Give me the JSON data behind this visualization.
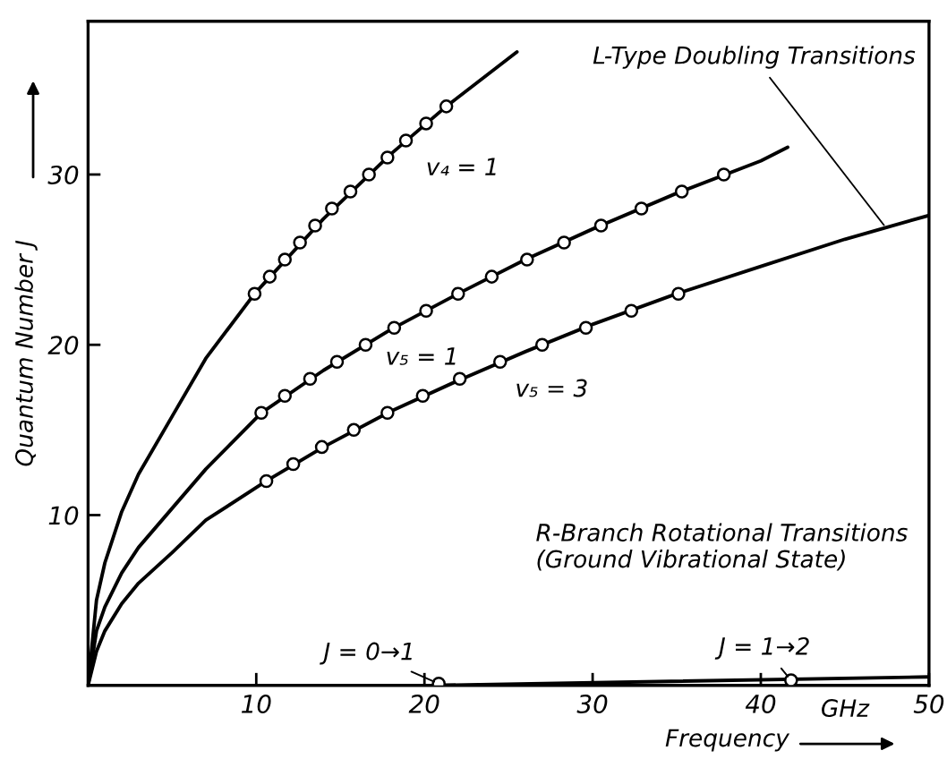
{
  "chart_data": {
    "type": "line",
    "xlabel": "Frequency",
    "ylabel": "Quantum Number J",
    "xlim": [
      0,
      50
    ],
    "ylim": [
      0,
      39
    ],
    "xticks": [
      10,
      20,
      30,
      40,
      50
    ],
    "yticks": [
      10,
      20,
      30
    ],
    "grid": false,
    "legend": false,
    "series": [
      {
        "color": "#000000",
        "x": [
          0,
          0.5,
          1,
          2,
          3,
          5,
          7,
          9.9,
          14,
          18,
          21.3,
          25.5
        ],
        "values": [
          0,
          5,
          7.2,
          10.2,
          12.4,
          15.8,
          19.2,
          23,
          27.4,
          31.2,
          34,
          37.2
        ]
      },
      {
        "color": "#000000",
        "x": [
          0,
          0.5,
          1,
          2,
          3,
          5,
          7,
          10.3,
          14,
          18,
          22,
          26,
          30,
          35,
          40,
          41.6
        ],
        "values": [
          0,
          3.2,
          4.6,
          6.6,
          8.1,
          10.4,
          12.7,
          16,
          18.5,
          20.9,
          23,
          25,
          26.8,
          28.9,
          30.8,
          31.6
        ]
      },
      {
        "color": "#000000",
        "x": [
          0,
          0.5,
          1,
          2,
          3,
          5,
          7,
          10.6,
          14,
          18,
          22,
          26,
          30,
          35,
          40,
          45,
          50
        ],
        "values": [
          0,
          2,
          3.2,
          4.8,
          6,
          7.8,
          9.7,
          12,
          14,
          16.1,
          17.9,
          19.6,
          21.2,
          23,
          24.6,
          26.2,
          27.6
        ]
      },
      {
        "color": "#000000",
        "x": [
          20.5,
          50
        ],
        "values": [
          0,
          0.5
        ]
      },
      {
        "type": "scatter",
        "color": "#000000",
        "marker": "circle",
        "x": [
          9.9,
          10.8,
          11.7,
          12.6,
          13.5,
          14.5,
          15.6,
          16.7,
          17.8,
          18.9,
          20.1,
          21.3
        ],
        "values": [
          23,
          24,
          25,
          26,
          27,
          28,
          29,
          30,
          31,
          32,
          33,
          34
        ]
      },
      {
        "type": "scatter",
        "color": "#000000",
        "marker": "circle",
        "x": [
          10.3,
          11.7,
          13.2,
          14.8,
          16.5,
          18.2,
          20.1,
          22,
          24,
          26.1,
          28.3,
          30.5,
          32.9,
          35.3,
          37.8
        ],
        "values": [
          16,
          17,
          18,
          19,
          20,
          21,
          22,
          23,
          24,
          25,
          26,
          27,
          28,
          29,
          30
        ]
      },
      {
        "type": "scatter",
        "color": "#000000",
        "marker": "circle",
        "x": [
          10.6,
          12.2,
          13.9,
          15.8,
          17.8,
          19.9,
          22.1,
          24.5,
          27,
          29.6,
          32.3,
          35.1
        ],
        "values": [
          12,
          13,
          14,
          15,
          16,
          17,
          18,
          19,
          20,
          21,
          22,
          23
        ]
      },
      {
        "type": "scatter",
        "color": "#000000",
        "marker": "circle",
        "x": [
          20.85,
          41.8
        ],
        "values": [
          0.1,
          0.3
        ]
      }
    ],
    "annotations": [
      {
        "text": "L-Type Doubling Transitions",
        "x": 47.5,
        "y": 26.8
      },
      "R-Branch Rotational Transitions\n(Ground Vibrational State)",
      {
        "text": "v₄ = 1",
        "x": 18.9,
        "y": 32
      },
      {
        "text": "v₅ = 1",
        "x": 16.5,
        "y": 20
      },
      {
        "text": "v₅ = 3",
        "x": 24.5,
        "y": 19
      },
      {
        "text": "J = 0→1",
        "x": 20.85,
        "y": 0.1
      },
      {
        "text": "J = 1→2",
        "x": 41.8,
        "y": 0.3
      },
      "GHz"
    ]
  }
}
